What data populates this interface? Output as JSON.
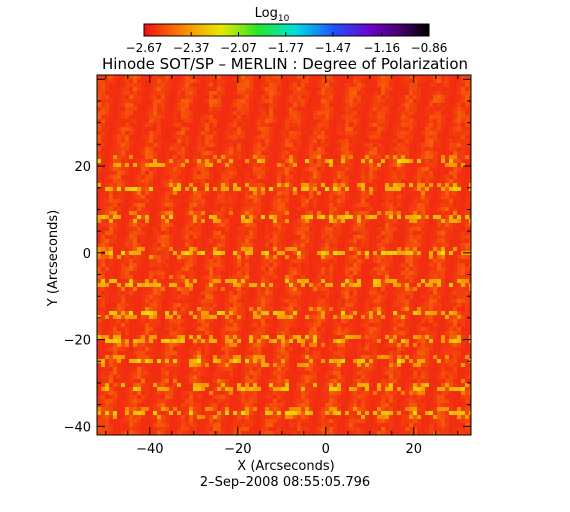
{
  "chart_data": {
    "type": "heatmap",
    "title": "Hinode SOT/SP – MERLIN : Degree of Polarization",
    "xlabel": "X (Arcseconds)",
    "ylabel": "Y (Arcseconds)",
    "date_label": "2–Sep–2008 08:55:05.796",
    "xlim": [
      -52,
      33
    ],
    "ylim": [
      -42,
      41
    ],
    "x_ticks": [
      -40,
      -20,
      0,
      20
    ],
    "x_tick_labels": [
      "−40",
      "−20",
      "0",
      "20"
    ],
    "y_ticks": [
      -40,
      -20,
      0,
      20
    ],
    "y_tick_labels": [
      "−40",
      "−20",
      "0",
      "20"
    ],
    "colorbar": {
      "label_base": "Log",
      "label_sub": "10",
      "range": [
        -2.67,
        -0.86
      ],
      "ticks": [
        -2.67,
        -2.37,
        -2.07,
        -1.77,
        -1.47,
        -1.16,
        -0.86
      ],
      "tick_labels": [
        "−2.67",
        "−2.37",
        "−2.07",
        "−1.77",
        "−1.47",
        "−1.16",
        "−0.86"
      ],
      "colormap": "rainbow"
    },
    "field": {
      "background_range": [
        -2.67,
        -2.5
      ],
      "banded_features_y": [
        21,
        15,
        8,
        0,
        -7,
        -14,
        -20,
        -25,
        -31,
        -37
      ],
      "feature_peak": -2.2
    }
  }
}
